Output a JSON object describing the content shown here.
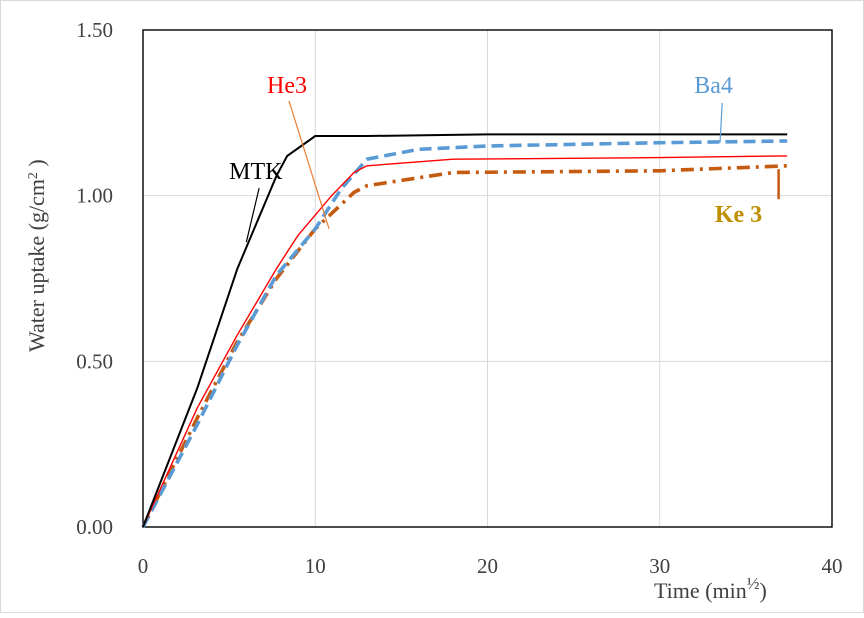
{
  "chart_data": {
    "type": "line",
    "title": "",
    "xlabel": "Time (min",
    "xlabel_sup": "½",
    "xlabel_close": ")",
    "ylabel": "Water uptake (g/cm",
    "ylabel_sup": "2",
    "ylabel_close": " )",
    "xlim": [
      0,
      40
    ],
    "ylim": [
      0,
      1.5
    ],
    "x_ticks": [
      0,
      10,
      20,
      30,
      40
    ],
    "x_tick_labels": [
      "0",
      "10",
      "20",
      "30",
      "40"
    ],
    "y_ticks": [
      0,
      0.5,
      1.0,
      1.5
    ],
    "y_tick_labels": [
      "0.00",
      "0.50",
      "1.00",
      "1.50"
    ],
    "grid": true,
    "legend": "none (series labelled directly with callouts)",
    "series": [
      {
        "name": "MTK",
        "color": "#000000",
        "dash": "solid",
        "points": [
          [
            0,
            0
          ],
          [
            3.16,
            0.42
          ],
          [
            5.48,
            0.78
          ],
          [
            7.75,
            1.06
          ],
          [
            8.37,
            1.12
          ],
          [
            10.0,
            1.18
          ],
          [
            13.0,
            1.18
          ],
          [
            20.0,
            1.185
          ],
          [
            30.0,
            1.185
          ],
          [
            37.4,
            1.185
          ]
        ]
      },
      {
        "name": "He3",
        "color": "#ff0000",
        "dash": "solid",
        "points": [
          [
            0,
            0
          ],
          [
            3.16,
            0.36
          ],
          [
            5.48,
            0.58
          ],
          [
            7.75,
            0.78
          ],
          [
            9.0,
            0.88
          ],
          [
            10.95,
            1.0
          ],
          [
            12.25,
            1.07
          ],
          [
            13.0,
            1.09
          ],
          [
            18.0,
            1.11
          ],
          [
            30.0,
            1.115
          ],
          [
            37.4,
            1.12
          ]
        ]
      },
      {
        "name": "Ba4",
        "color": "#5b9bd5",
        "dash": "dash",
        "points": [
          [
            0,
            0
          ],
          [
            3.16,
            0.31
          ],
          [
            5.48,
            0.55
          ],
          [
            7.75,
            0.76
          ],
          [
            10.0,
            0.9
          ],
          [
            11.5,
            1.02
          ],
          [
            13.0,
            1.11
          ],
          [
            16.0,
            1.14
          ],
          [
            20.0,
            1.15
          ],
          [
            30.0,
            1.16
          ],
          [
            37.4,
            1.165
          ]
        ]
      },
      {
        "name": "Ke 3",
        "color": "#c55a11",
        "dash": "dashdot",
        "points": [
          [
            0,
            0
          ],
          [
            3.16,
            0.33
          ],
          [
            5.48,
            0.56
          ],
          [
            7.75,
            0.75
          ],
          [
            10.0,
            0.9
          ],
          [
            12.25,
            1.01
          ],
          [
            13.0,
            1.03
          ],
          [
            18.0,
            1.07
          ],
          [
            30.0,
            1.075
          ],
          [
            37.4,
            1.09
          ]
        ]
      }
    ],
    "annotations": [
      {
        "text": "MTK",
        "color": "#000000",
        "x": 5.0,
        "y": 1.05,
        "pointer_to": [
          6.0,
          0.86
        ],
        "pointer_color": "#000000"
      },
      {
        "text": "He3",
        "color": "#ff0000",
        "x": 7.2,
        "y": 1.31,
        "pointer_to": [
          10.8,
          0.9
        ],
        "pointer_color": "#ed7d31"
      },
      {
        "text": "Ba4",
        "color": "#5b9bd5",
        "x": 32.0,
        "y": 1.31,
        "pointer_to": [
          33.5,
          1.16
        ],
        "pointer_color": "#5b9bd5"
      },
      {
        "text": "Ke 3",
        "color": "#bf8f00",
        "bold": true,
        "x": 33.2,
        "y": 0.92,
        "pointer_to": [
          36.9,
          1.08
        ],
        "pointer_color": "#c55a11"
      }
    ]
  }
}
